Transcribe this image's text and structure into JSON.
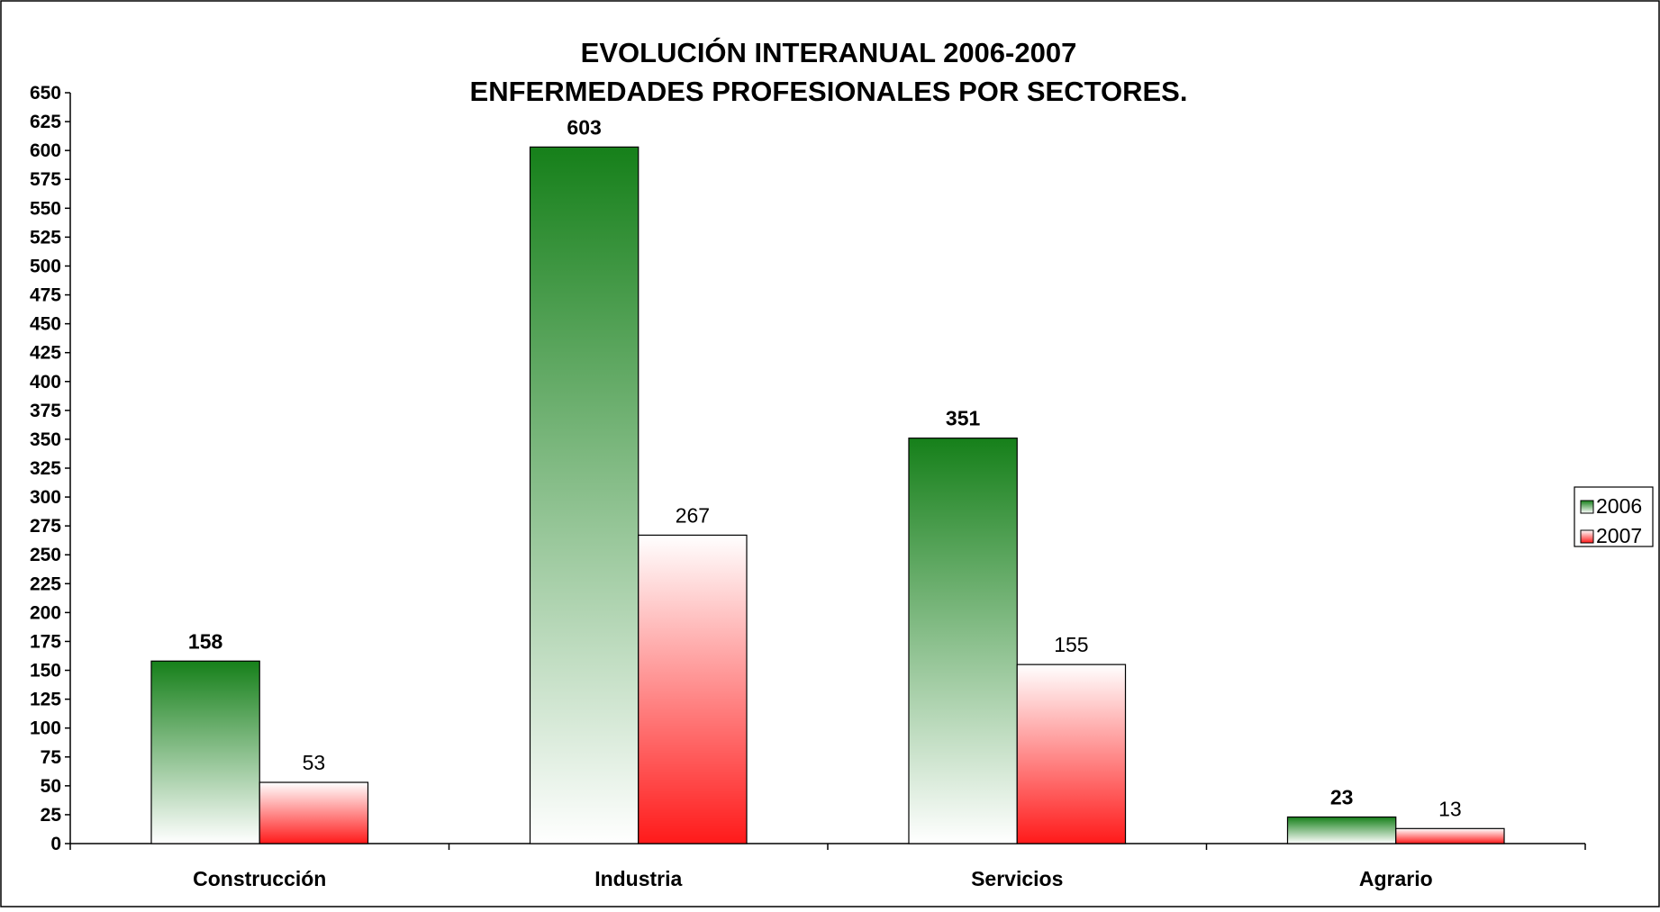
{
  "chart_data": {
    "type": "bar",
    "title": [
      "EVOLUCIÓN INTERANUAL 2006-2007",
      "ENFERMEDADES PROFESIONALES POR SECTORES."
    ],
    "xlabel": "",
    "ylabel": "",
    "categories": [
      "Construcción",
      "Industria",
      "Servicios",
      "Agrario"
    ],
    "series": [
      {
        "name": "2006",
        "values": [
          158,
          603,
          351,
          23
        ],
        "color_top": "#16801a",
        "color_bottom": "#ffffff",
        "label_weight": "bold"
      },
      {
        "name": "2007",
        "values": [
          53,
          267,
          155,
          13
        ],
        "color_top": "#ffffff",
        "color_bottom": "#ff1a1a",
        "label_weight": "normal"
      }
    ],
    "ylim": [
      0,
      650
    ],
    "ytick_step": 25,
    "grid": false,
    "legend": "right",
    "data_labels": true
  }
}
